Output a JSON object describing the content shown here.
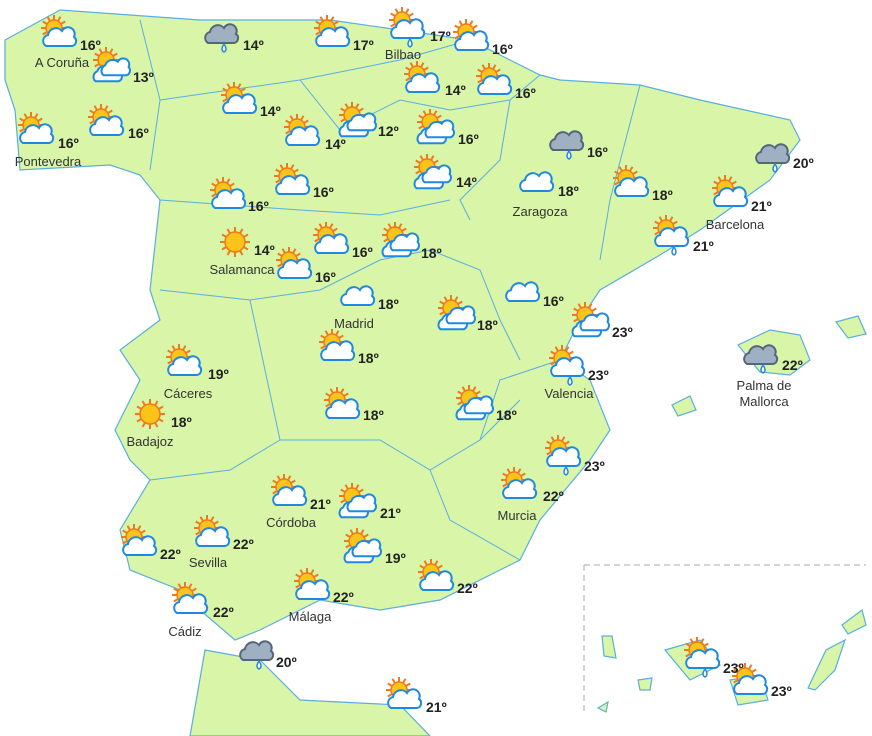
{
  "locations": [
    {
      "temperature": "16º",
      "city": "A Coruña"
    },
    {
      "temperature": "13º"
    },
    {
      "temperature": "14º"
    },
    {
      "temperature": "17º"
    },
    {
      "temperature": "17º",
      "city": "Bilbao"
    },
    {
      "temperature": "16º"
    },
    {
      "temperature": "16º",
      "city": "Pontevedra"
    },
    {
      "temperature": "16º"
    },
    {
      "temperature": "14º"
    },
    {
      "temperature": "14º"
    },
    {
      "temperature": "16º"
    },
    {
      "temperature": "14º"
    },
    {
      "temperature": "12º"
    },
    {
      "temperature": "16º"
    },
    {
      "temperature": "16º"
    },
    {
      "temperature": "20º"
    },
    {
      "temperature": "14º"
    },
    {
      "temperature": "18º",
      "city": "Zaragoza"
    },
    {
      "temperature": "18º"
    },
    {
      "temperature": "16º"
    },
    {
      "temperature": "16º"
    },
    {
      "temperature": "21º",
      "city": "Barcelona"
    },
    {
      "temperature": "14º",
      "city": "Salamanca"
    },
    {
      "temperature": "16º"
    },
    {
      "temperature": "18º"
    },
    {
      "temperature": "21º"
    },
    {
      "temperature": "16º"
    },
    {
      "temperature": "18º",
      "city": "Madrid"
    },
    {
      "temperature": "16º"
    },
    {
      "temperature": "18º"
    },
    {
      "temperature": "23º"
    },
    {
      "temperature": "18º"
    },
    {
      "temperature": "19º",
      "city": "Cáceres"
    },
    {
      "temperature": "23º",
      "city": "Valencia"
    },
    {
      "temperature": "22º",
      "city": "Palma de Mallorca"
    },
    {
      "temperature": "18º",
      "city": "Badajoz"
    },
    {
      "temperature": "18º"
    },
    {
      "temperature": "18º"
    },
    {
      "temperature": "23º"
    },
    {
      "temperature": "21º",
      "city": "Córdoba"
    },
    {
      "temperature": "21º"
    },
    {
      "temperature": "22º",
      "city": "Murcia"
    },
    {
      "temperature": "22º"
    },
    {
      "temperature": "22º",
      "city": "Sevilla"
    },
    {
      "temperature": "19º"
    },
    {
      "temperature": "22º"
    },
    {
      "temperature": "22º",
      "city": "Málaga"
    },
    {
      "temperature": "22º",
      "city": "Cádiz"
    },
    {
      "temperature": "20º"
    },
    {
      "temperature": "21º"
    },
    {
      "temperature": "23º"
    },
    {
      "temperature": "23º"
    }
  ]
}
